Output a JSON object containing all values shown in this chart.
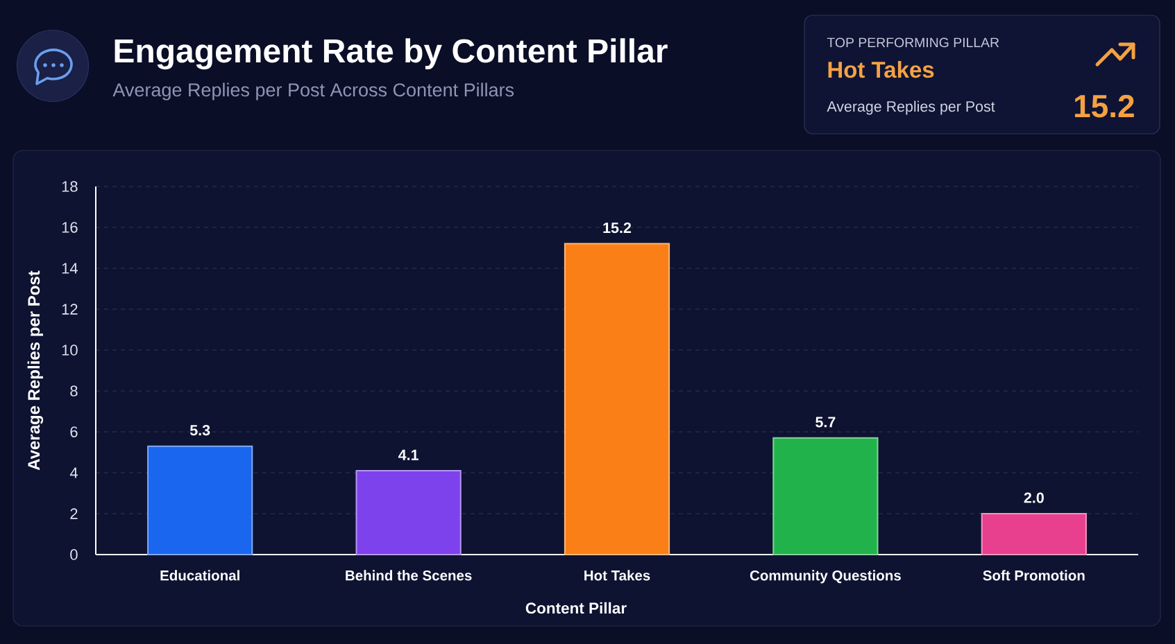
{
  "chart_data": {
    "type": "bar",
    "title": "Engagement Rate by Content Pillar",
    "subtitle": "Average Replies per Post Across Content Pillars",
    "xlabel": "Content Pillar",
    "ylabel": "Average Replies per Post",
    "categories": [
      "Educational",
      "Behind the Scenes",
      "Hot Takes",
      "Community Questions",
      "Soft Promotion"
    ],
    "values": [
      5.3,
      4.1,
      15.2,
      5.7,
      2.0
    ],
    "value_labels": [
      "5.3",
      "4.1",
      "15.2",
      "5.7",
      "2.0"
    ],
    "colors": [
      "#1a66ee",
      "#7d42ec",
      "#f97f16",
      "#22b24c",
      "#e8408f"
    ],
    "ylim": [
      0,
      18
    ],
    "yticks": [
      0,
      2,
      4,
      6,
      8,
      10,
      12,
      14,
      16,
      18
    ],
    "grid": "y",
    "annotations": [
      "TOP PERFORMING PILLAR",
      "Hot Takes",
      "Average Replies per Post",
      "15.2"
    ]
  }
}
